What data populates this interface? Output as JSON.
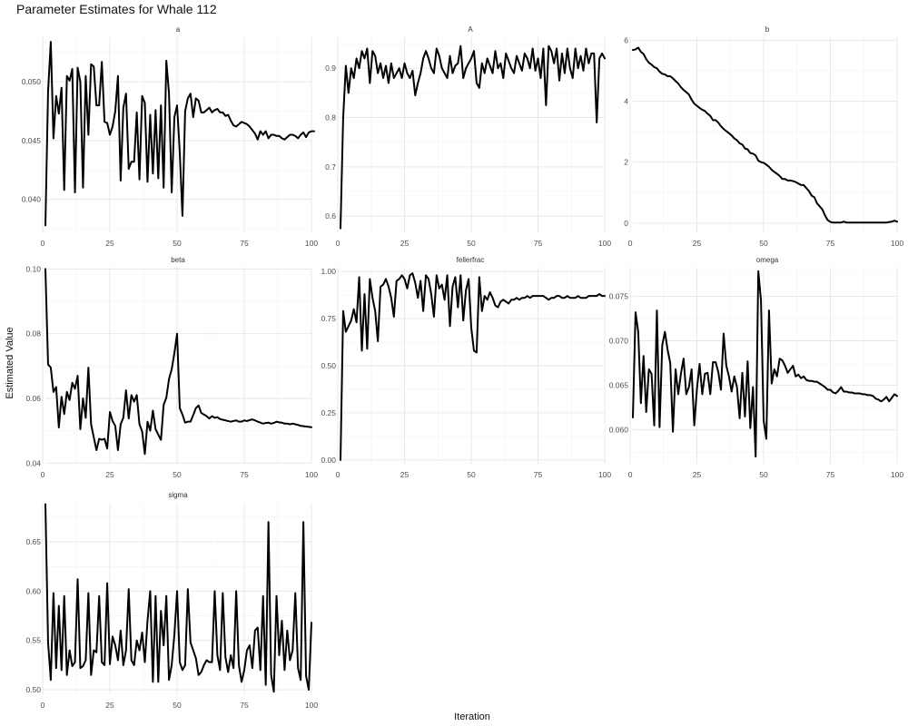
{
  "chart_data": {
    "type": "line",
    "title": "Parameter Estimates for Whale 112",
    "xlabel": "Iteration",
    "ylabel": "Estimated Value",
    "grid": true,
    "legend": "none",
    "line_color": "#000000",
    "panels": [
      {
        "name": "a",
        "xlim": [
          1,
          100
        ],
        "ylim": [
          0.0372,
          0.0538
        ],
        "xticks": [
          0,
          25,
          50,
          75,
          100
        ],
        "yticks": [
          0.04,
          0.045,
          0.05
        ],
        "ytick_labels": [
          "0.040",
          "0.045",
          "0.050"
        ],
        "values": [
          0.0378,
          0.0492,
          0.0534,
          0.0452,
          0.0488,
          0.0473,
          0.0495,
          0.0408,
          0.0505,
          0.0501,
          0.0511,
          0.0406,
          0.0512,
          0.05,
          0.041,
          0.0505,
          0.0455,
          0.0515,
          0.0513,
          0.048,
          0.048,
          0.0517,
          0.0466,
          0.0465,
          0.0455,
          0.0462,
          0.0475,
          0.0505,
          0.0416,
          0.0478,
          0.049,
          0.0426,
          0.0432,
          0.0432,
          0.0474,
          0.0417,
          0.0488,
          0.0482,
          0.0415,
          0.0472,
          0.0422,
          0.0476,
          0.0418,
          0.048,
          0.041,
          0.0518,
          0.049,
          0.0406,
          0.047,
          0.048,
          0.044,
          0.0386,
          0.0475,
          0.0486,
          0.049,
          0.047,
          0.0486,
          0.0484,
          0.0474,
          0.0474,
          0.0476,
          0.0478,
          0.0474,
          0.0476,
          0.0477,
          0.0474,
          0.0474,
          0.0471,
          0.0472,
          0.0467,
          0.0463,
          0.0462,
          0.0464,
          0.0466,
          0.0465,
          0.0464,
          0.0462,
          0.0459,
          0.0456,
          0.0451,
          0.0458,
          0.0455,
          0.0458,
          0.0452,
          0.0455,
          0.0455,
          0.0454,
          0.0454,
          0.0452,
          0.0451,
          0.0453,
          0.0455,
          0.0455,
          0.0454,
          0.0452,
          0.0455,
          0.0457,
          0.0453,
          0.0457,
          0.0458,
          0.0458
        ]
      },
      {
        "name": "A",
        "xlim": [
          1,
          100
        ],
        "ylim": [
          0.567,
          0.963
        ],
        "xticks": [
          0,
          25,
          50,
          75,
          100
        ],
        "yticks": [
          0.6,
          0.7,
          0.8,
          0.9
        ],
        "ytick_labels": [
          "0.6",
          "0.7",
          "0.8",
          "0.9"
        ],
        "values": [
          0.575,
          0.8,
          0.905,
          0.85,
          0.9,
          0.88,
          0.92,
          0.9,
          0.935,
          0.92,
          0.94,
          0.87,
          0.935,
          0.925,
          0.89,
          0.91,
          0.88,
          0.905,
          0.87,
          0.91,
          0.88,
          0.89,
          0.9,
          0.88,
          0.91,
          0.89,
          0.88,
          0.895,
          0.845,
          0.87,
          0.89,
          0.92,
          0.935,
          0.92,
          0.9,
          0.89,
          0.94,
          0.925,
          0.9,
          0.89,
          0.88,
          0.925,
          0.89,
          0.905,
          0.91,
          0.945,
          0.88,
          0.9,
          0.91,
          0.92,
          0.935,
          0.87,
          0.86,
          0.91,
          0.89,
          0.92,
          0.905,
          0.89,
          0.935,
          0.9,
          0.91,
          0.88,
          0.93,
          0.915,
          0.9,
          0.89,
          0.925,
          0.91,
          0.895,
          0.93,
          0.92,
          0.9,
          0.94,
          0.895,
          0.92,
          0.88,
          0.94,
          0.825,
          0.945,
          0.935,
          0.91,
          0.94,
          0.875,
          0.93,
          0.89,
          0.94,
          0.9,
          0.88,
          0.94,
          0.9,
          0.925,
          0.895,
          0.94,
          0.91,
          0.93,
          0.93,
          0.79,
          0.92,
          0.93,
          0.92
        ]
      },
      {
        "name": "b",
        "xlim": [
          1,
          100
        ],
        "ylim": [
          -0.3,
          6.1
        ],
        "xticks": [
          0,
          25,
          50,
          75,
          100
        ],
        "yticks": [
          0,
          2,
          4,
          6
        ],
        "ytick_labels": [
          "0",
          "2",
          "4",
          "6"
        ],
        "values": [
          5.68,
          5.7,
          5.76,
          5.62,
          5.55,
          5.38,
          5.26,
          5.2,
          5.12,
          5.08,
          4.97,
          4.9,
          4.88,
          4.82,
          4.82,
          4.75,
          4.66,
          4.58,
          4.46,
          4.37,
          4.3,
          4.22,
          4.05,
          3.92,
          3.85,
          3.78,
          3.72,
          3.68,
          3.59,
          3.52,
          3.38,
          3.38,
          3.3,
          3.18,
          3.09,
          3.02,
          2.95,
          2.88,
          2.78,
          2.72,
          2.62,
          2.58,
          2.45,
          2.42,
          2.3,
          2.28,
          2.22,
          2.05,
          2.0,
          1.98,
          1.92,
          1.85,
          1.75,
          1.68,
          1.62,
          1.55,
          1.45,
          1.45,
          1.4,
          1.4,
          1.38,
          1.35,
          1.3,
          1.25,
          1.25,
          1.15,
          1.05,
          0.9,
          0.85,
          0.65,
          0.55,
          0.45,
          0.25,
          0.1,
          0.04,
          0.02,
          0.02,
          0.02,
          0.02,
          0.05,
          0.02,
          0.02,
          0.02,
          0.02,
          0.02,
          0.02,
          0.02,
          0.02,
          0.02,
          0.02,
          0.02,
          0.02,
          0.02,
          0.02,
          0.02,
          0.02,
          0.04,
          0.05,
          0.08,
          0.05
        ]
      },
      {
        "name": "beta",
        "xlim": [
          1,
          100
        ],
        "ylim": [
          0.0398,
          0.1004
        ],
        "xticks": [
          0,
          25,
          50,
          75,
          100
        ],
        "yticks": [
          0.04,
          0.06,
          0.08,
          0.1
        ],
        "ytick_labels": [
          "0.04",
          "0.06",
          "0.08",
          "0.10"
        ],
        "values": [
          0.1,
          0.0705,
          0.0695,
          0.062,
          0.0635,
          0.051,
          0.0605,
          0.0552,
          0.062,
          0.0595,
          0.0648,
          0.063,
          0.067,
          0.0505,
          0.06,
          0.054,
          0.0695,
          0.052,
          0.048,
          0.044,
          0.0475,
          0.0472,
          0.0475,
          0.0445,
          0.0558,
          0.053,
          0.0515,
          0.044,
          0.052,
          0.054,
          0.0625,
          0.0538,
          0.061,
          0.059,
          0.061,
          0.052,
          0.0498,
          0.0428,
          0.0528,
          0.05,
          0.0562,
          0.0505,
          0.0488,
          0.0472,
          0.058,
          0.0602,
          0.066,
          0.069,
          0.074,
          0.08,
          0.057,
          0.055,
          0.0525,
          0.0528,
          0.0528,
          0.0548,
          0.057,
          0.0578,
          0.0555,
          0.055,
          0.0545,
          0.0538,
          0.0545,
          0.054,
          0.0542,
          0.0536,
          0.0534,
          0.0532,
          0.053,
          0.0528,
          0.053,
          0.0532,
          0.0528,
          0.0528,
          0.0532,
          0.053,
          0.0533,
          0.0535,
          0.0532,
          0.0528,
          0.0525,
          0.0522,
          0.0524,
          0.0525,
          0.0522,
          0.0524,
          0.0528,
          0.0526,
          0.0525,
          0.0522,
          0.0522,
          0.052,
          0.0522,
          0.052,
          0.0518,
          0.0515,
          0.0514,
          0.0513,
          0.0512,
          0.0511
        ]
      },
      {
        "name": "fellerfrac",
        "xlim": [
          1,
          100
        ],
        "ylim": [
          -0.02,
          1.02
        ],
        "xticks": [
          0,
          25,
          50,
          75,
          100
        ],
        "yticks": [
          0.0,
          0.25,
          0.5,
          0.75,
          1.0
        ],
        "ytick_labels": [
          "0.00",
          "0.25",
          "0.50",
          "0.75",
          "1.00"
        ],
        "values": [
          0.0,
          0.79,
          0.68,
          0.71,
          0.74,
          0.8,
          0.73,
          0.97,
          0.58,
          0.88,
          0.59,
          0.96,
          0.86,
          0.79,
          0.63,
          0.92,
          0.93,
          0.96,
          0.92,
          0.86,
          0.76,
          0.95,
          0.96,
          0.98,
          0.96,
          0.91,
          0.98,
          0.99,
          0.94,
          0.86,
          0.95,
          0.79,
          0.98,
          0.96,
          0.88,
          0.76,
          0.98,
          0.91,
          0.93,
          0.85,
          0.98,
          0.71,
          0.92,
          0.97,
          0.81,
          0.98,
          0.74,
          0.9,
          0.96,
          0.7,
          0.58,
          0.57,
          0.97,
          0.79,
          0.87,
          0.85,
          0.89,
          0.86,
          0.82,
          0.81,
          0.84,
          0.85,
          0.84,
          0.83,
          0.85,
          0.85,
          0.86,
          0.85,
          0.86,
          0.86,
          0.87,
          0.86,
          0.87,
          0.87,
          0.87,
          0.87,
          0.87,
          0.86,
          0.85,
          0.86,
          0.86,
          0.87,
          0.87,
          0.86,
          0.86,
          0.87,
          0.86,
          0.86,
          0.86,
          0.87,
          0.86,
          0.86,
          0.86,
          0.87,
          0.87,
          0.87,
          0.87,
          0.88,
          0.87,
          0.87
        ]
      },
      {
        "name": "omega",
        "xlim": [
          1,
          100
        ],
        "ylim": [
          0.0562,
          0.0782
        ],
        "xticks": [
          0,
          25,
          50,
          75,
          100
        ],
        "yticks": [
          0.06,
          0.065,
          0.07,
          0.075
        ],
        "ytick_labels": [
          "0.060",
          "0.065",
          "0.070",
          "0.075"
        ],
        "values": [
          0.0614,
          0.0732,
          0.071,
          0.063,
          0.0683,
          0.062,
          0.0668,
          0.0663,
          0.0605,
          0.0734,
          0.0603,
          0.0695,
          0.071,
          0.069,
          0.0675,
          0.0598,
          0.0668,
          0.064,
          0.0663,
          0.068,
          0.064,
          0.0648,
          0.0668,
          0.0605,
          0.0646,
          0.0674,
          0.064,
          0.0663,
          0.0664,
          0.064,
          0.0676,
          0.0676,
          0.0665,
          0.0645,
          0.0708,
          0.0672,
          0.066,
          0.0643,
          0.066,
          0.0648,
          0.0613,
          0.0664,
          0.0615,
          0.0677,
          0.0602,
          0.0648,
          0.057,
          0.0778,
          0.0745,
          0.061,
          0.059,
          0.0734,
          0.0652,
          0.0668,
          0.066,
          0.068,
          0.0678,
          0.0672,
          0.0664,
          0.0668,
          0.0672,
          0.066,
          0.0662,
          0.0658,
          0.066,
          0.0656,
          0.0655,
          0.0655,
          0.0654,
          0.0654,
          0.0652,
          0.065,
          0.0648,
          0.0645,
          0.0645,
          0.0642,
          0.0641,
          0.0644,
          0.0648,
          0.0643,
          0.0643,
          0.0642,
          0.0642,
          0.0641,
          0.0641,
          0.0641,
          0.064,
          0.064,
          0.0639,
          0.0639,
          0.0638,
          0.0635,
          0.0634,
          0.0632,
          0.0634,
          0.0637,
          0.0632,
          0.0636,
          0.064,
          0.0638
        ]
      },
      {
        "name": "sigma",
        "xlim": [
          1,
          100
        ],
        "ylim": [
          0.4955,
          0.6895
        ],
        "xticks": [
          0,
          25,
          50,
          75,
          100
        ],
        "yticks": [
          0.5,
          0.55,
          0.6,
          0.65
        ],
        "ytick_labels": [
          "0.50",
          "0.55",
          "0.60",
          "0.65"
        ],
        "values": [
          0.688,
          0.548,
          0.51,
          0.598,
          0.522,
          0.585,
          0.52,
          0.595,
          0.515,
          0.54,
          0.524,
          0.528,
          0.612,
          0.522,
          0.524,
          0.53,
          0.598,
          0.515,
          0.54,
          0.538,
          0.595,
          0.528,
          0.525,
          0.608,
          0.526,
          0.554,
          0.545,
          0.53,
          0.56,
          0.525,
          0.54,
          0.602,
          0.53,
          0.525,
          0.55,
          0.54,
          0.558,
          0.528,
          0.57,
          0.6,
          0.508,
          0.595,
          0.508,
          0.58,
          0.545,
          0.595,
          0.51,
          0.525,
          0.556,
          0.6,
          0.528,
          0.52,
          0.525,
          0.602,
          0.548,
          0.54,
          0.532,
          0.515,
          0.518,
          0.525,
          0.53,
          0.528,
          0.528,
          0.6,
          0.535,
          0.52,
          0.598,
          0.533,
          0.518,
          0.535,
          0.522,
          0.6,
          0.525,
          0.508,
          0.52,
          0.54,
          0.545,
          0.522,
          0.56,
          0.563,
          0.52,
          0.595,
          0.505,
          0.67,
          0.515,
          0.498,
          0.595,
          0.535,
          0.57,
          0.52,
          0.56,
          0.53,
          0.54,
          0.598,
          0.522,
          0.51,
          0.67,
          0.514,
          0.5,
          0.568
        ]
      }
    ]
  }
}
